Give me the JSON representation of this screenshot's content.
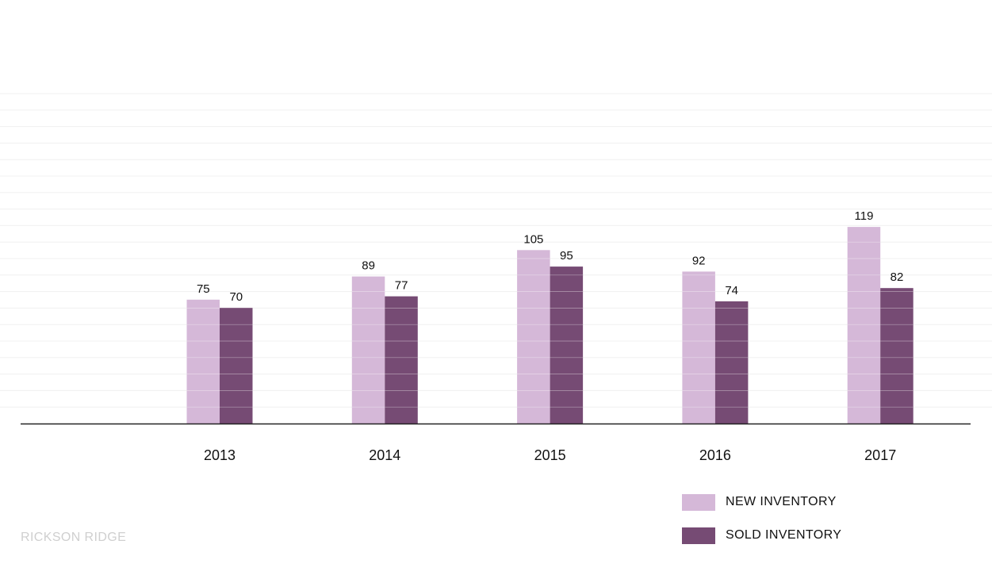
{
  "chart_data": {
    "type": "bar",
    "categories": [
      "2013",
      "2014",
      "2015",
      "2016",
      "2017"
    ],
    "series": [
      {
        "name": "NEW INVENTORY",
        "values": [
          75,
          89,
          105,
          92,
          119
        ],
        "color": "#d5b8d8"
      },
      {
        "name": "SOLD INVENTORY",
        "values": [
          70,
          77,
          95,
          74,
          82
        ],
        "color": "#764b74"
      }
    ],
    "title": "",
    "xlabel": "",
    "ylabel": "",
    "ylim": [
      0,
      200
    ],
    "grid": true,
    "legend_position": "bottom-right"
  },
  "watermark": "RICKSON RIDGE",
  "colors": {
    "axis": "#222222",
    "grid": "#f0f0f0",
    "bar_separator": "#ffffff"
  }
}
